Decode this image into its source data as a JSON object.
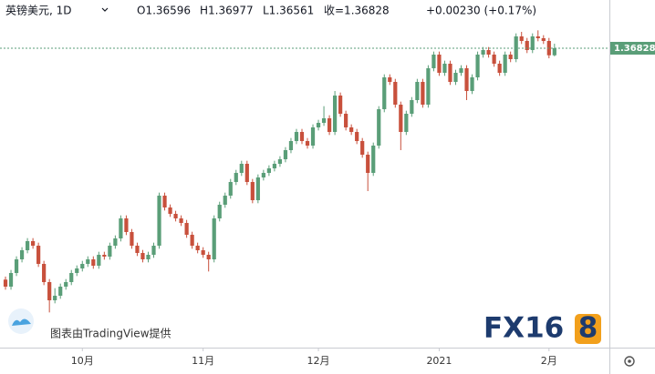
{
  "header": {
    "symbol": "英镑美元, 1D",
    "open": "O1.36596",
    "high": "H1.36977",
    "low": "L1.36561",
    "close": "收=1.36828",
    "change": "+0.00230 (+0.17%)"
  },
  "watermark": "图表由TradingView提供",
  "logo_main": "FX16",
  "logo_accent": "8",
  "chart_data": {
    "type": "candlestick",
    "up_color": "#5a9e78",
    "down_color": "#c8503c",
    "xlim": [
      -1,
      110
    ],
    "ylim": [
      1.26958,
      1.38418
    ],
    "xticks": [
      {
        "value": 14,
        "label": "10月"
      },
      {
        "value": 36,
        "label": "11月"
      },
      {
        "value": 57,
        "label": "12月"
      },
      {
        "value": 79,
        "label": "2021"
      },
      {
        "value": 99,
        "label": "2月"
      }
    ],
    "last_price": 1.36828,
    "ohlc": [
      [
        1.292,
        1.293,
        1.28868,
        1.28968
      ],
      [
        1.28968,
        1.29518,
        1.28868,
        1.29418
      ],
      [
        1.29418,
        1.29968,
        1.29318,
        1.29868
      ],
      [
        1.29868,
        1.30268,
        1.29768,
        1.30168
      ],
      [
        1.30168,
        1.30568,
        1.30068,
        1.30468
      ],
      [
        1.30468,
        1.30568,
        1.30218,
        1.30318
      ],
      [
        1.30318,
        1.30418,
        1.29618,
        1.29718
      ],
      [
        1.29718,
        1.29818,
        1.29018,
        1.29118
      ],
      [
        1.29118,
        1.29218,
        1.28118,
        1.28518
      ],
      [
        1.28518,
        1.28918,
        1.28418,
        1.28668
      ],
      [
        1.28668,
        1.29068,
        1.28568,
        1.28968
      ],
      [
        1.28968,
        1.29218,
        1.28868,
        1.29118
      ],
      [
        1.29118,
        1.29518,
        1.29018,
        1.29418
      ],
      [
        1.29418,
        1.29668,
        1.29318,
        1.29568
      ],
      [
        1.29568,
        1.29818,
        1.29468,
        1.29718
      ],
      [
        1.29718,
        1.29968,
        1.29618,
        1.29868
      ],
      [
        1.29868,
        1.29968,
        1.29558,
        1.29658
      ],
      [
        1.29658,
        1.30118,
        1.29558,
        1.30018
      ],
      [
        1.30018,
        1.30118,
        1.29858,
        1.29958
      ],
      [
        1.29958,
        1.30418,
        1.29858,
        1.30318
      ],
      [
        1.30318,
        1.30658,
        1.30218,
        1.30558
      ],
      [
        1.30558,
        1.31318,
        1.30458,
        1.31218
      ],
      [
        1.31218,
        1.31318,
        1.30668,
        1.30768
      ],
      [
        1.30768,
        1.30868,
        1.30218,
        1.30318
      ],
      [
        1.30318,
        1.30418,
        1.29978,
        1.30078
      ],
      [
        1.30078,
        1.30178,
        1.29768,
        1.29868
      ],
      [
        1.29868,
        1.30118,
        1.29768,
        1.30018
      ],
      [
        1.30018,
        1.30418,
        1.29918,
        1.30318
      ],
      [
        1.30318,
        1.32068,
        1.30218,
        1.31968
      ],
      [
        1.31968,
        1.32068,
        1.31478,
        1.31578
      ],
      [
        1.31578,
        1.31678,
        1.31268,
        1.31368
      ],
      [
        1.31368,
        1.31468,
        1.31118,
        1.31218
      ],
      [
        1.31218,
        1.31318,
        1.30968,
        1.31068
      ],
      [
        1.31068,
        1.31168,
        1.30578,
        1.30678
      ],
      [
        1.30678,
        1.30778,
        1.30218,
        1.30318
      ],
      [
        1.30318,
        1.30418,
        1.30068,
        1.30168
      ],
      [
        1.30168,
        1.30268,
        1.29918,
        1.30018
      ],
      [
        1.30018,
        1.30118,
        1.29468,
        1.29868
      ],
      [
        1.29868,
        1.31318,
        1.29768,
        1.31218
      ],
      [
        1.31218,
        1.31768,
        1.31118,
        1.31668
      ],
      [
        1.31668,
        1.32068,
        1.31568,
        1.31968
      ],
      [
        1.31968,
        1.32518,
        1.31868,
        1.32418
      ],
      [
        1.32418,
        1.32818,
        1.32318,
        1.32718
      ],
      [
        1.32718,
        1.33118,
        1.32618,
        1.33018
      ],
      [
        1.33018,
        1.33118,
        1.32318,
        1.32418
      ],
      [
        1.32418,
        1.32518,
        1.31718,
        1.31818
      ],
      [
        1.31818,
        1.32668,
        1.31718,
        1.32568
      ],
      [
        1.32568,
        1.32818,
        1.32468,
        1.32718
      ],
      [
        1.32718,
        1.32968,
        1.32618,
        1.32868
      ],
      [
        1.32868,
        1.33118,
        1.32768,
        1.33018
      ],
      [
        1.33018,
        1.33268,
        1.32918,
        1.33168
      ],
      [
        1.33168,
        1.33568,
        1.33068,
        1.33468
      ],
      [
        1.33468,
        1.33868,
        1.33368,
        1.33768
      ],
      [
        1.33768,
        1.34168,
        1.33668,
        1.34068
      ],
      [
        1.34068,
        1.34168,
        1.33668,
        1.33768
      ],
      [
        1.33768,
        1.33868,
        1.33518,
        1.33618
      ],
      [
        1.33618,
        1.34318,
        1.33518,
        1.34218
      ],
      [
        1.34218,
        1.34468,
        1.34118,
        1.34368
      ],
      [
        1.34368,
        1.34918,
        1.34268,
        1.34518
      ],
      [
        1.34518,
        1.34618,
        1.33968,
        1.34068
      ],
      [
        1.34068,
        1.35418,
        1.33968,
        1.35268
      ],
      [
        1.35268,
        1.35368,
        1.34568,
        1.34668
      ],
      [
        1.34668,
        1.34768,
        1.34118,
        1.34218
      ],
      [
        1.34218,
        1.34318,
        1.33968,
        1.34068
      ],
      [
        1.34068,
        1.34168,
        1.33668,
        1.33768
      ],
      [
        1.33768,
        1.33868,
        1.33218,
        1.33318
      ],
      [
        1.33318,
        1.33418,
        1.32118,
        1.32718
      ],
      [
        1.32718,
        1.33718,
        1.32618,
        1.33618
      ],
      [
        1.33618,
        1.34918,
        1.33518,
        1.34818
      ],
      [
        1.34818,
        1.35968,
        1.34718,
        1.35868
      ],
      [
        1.35868,
        1.35968,
        1.35618,
        1.35718
      ],
      [
        1.35718,
        1.35818,
        1.34868,
        1.34968
      ],
      [
        1.34968,
        1.35068,
        1.33468,
        1.34068
      ],
      [
        1.34068,
        1.34768,
        1.33968,
        1.34668
      ],
      [
        1.34668,
        1.35218,
        1.34568,
        1.35118
      ],
      [
        1.35118,
        1.35818,
        1.35018,
        1.35718
      ],
      [
        1.35718,
        1.35818,
        1.34868,
        1.34968
      ],
      [
        1.34968,
        1.36268,
        1.34868,
        1.36168
      ],
      [
        1.36168,
        1.36718,
        1.36068,
        1.36618
      ],
      [
        1.36618,
        1.36718,
        1.35918,
        1.36018
      ],
      [
        1.36018,
        1.36418,
        1.35918,
        1.36318
      ],
      [
        1.36318,
        1.36418,
        1.35618,
        1.35718
      ],
      [
        1.35718,
        1.36118,
        1.35618,
        1.36018
      ],
      [
        1.36018,
        1.36268,
        1.35918,
        1.36168
      ],
      [
        1.36168,
        1.36268,
        1.35118,
        1.35418
      ],
      [
        1.35418,
        1.35968,
        1.35318,
        1.35868
      ],
      [
        1.35868,
        1.36718,
        1.35768,
        1.36618
      ],
      [
        1.36618,
        1.36868,
        1.36518,
        1.36768
      ],
      [
        1.36768,
        1.36868,
        1.36518,
        1.36618
      ],
      [
        1.36618,
        1.36718,
        1.36218,
        1.36318
      ],
      [
        1.36318,
        1.36418,
        1.35918,
        1.36018
      ],
      [
        1.36018,
        1.36718,
        1.35918,
        1.36618
      ],
      [
        1.36618,
        1.36718,
        1.36368,
        1.36468
      ],
      [
        1.36468,
        1.37318,
        1.36368,
        1.37218
      ],
      [
        1.37218,
        1.37368,
        1.36968,
        1.37068
      ],
      [
        1.37068,
        1.37168,
        1.36668,
        1.36768
      ],
      [
        1.36768,
        1.37318,
        1.36668,
        1.37218
      ],
      [
        1.37218,
        1.37418,
        1.37058,
        1.37158
      ],
      [
        1.37158,
        1.37258,
        1.36968,
        1.37068
      ],
      [
        1.37068,
        1.37168,
        1.36496,
        1.36596
      ],
      [
        1.36596,
        1.36977,
        1.36561,
        1.36828
      ]
    ]
  }
}
